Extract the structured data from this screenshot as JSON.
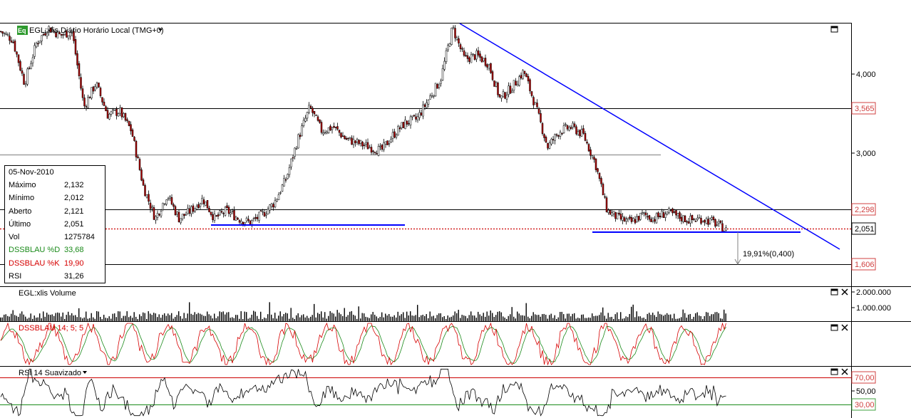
{
  "main_panel": {
    "logo": "Eq",
    "title": "EGL:xlis Diário Horário Local (TMG+0)",
    "menu_arrow": "▾",
    "annotation": "19,91%(0,400)",
    "colors": {
      "up": "#ffffff",
      "down": "#b00000",
      "trendline": "#0000ff",
      "last_line": "#cc0000"
    }
  },
  "info_box": {
    "date": "05-Nov-2010",
    "rows": [
      {
        "label": "Máximo",
        "value": "2,132",
        "color": "#000000"
      },
      {
        "label": "Mínimo",
        "value": "2,012",
        "color": "#000000"
      },
      {
        "label": "Aberto",
        "value": "2,121",
        "color": "#000000"
      },
      {
        "label": "Último",
        "value": "2,051",
        "color": "#000000"
      },
      {
        "label": "Vol",
        "value": "1275784",
        "color": "#000000"
      },
      {
        "label": "DSSBLAU %D",
        "value": "33,68",
        "color": "#1a8a1a"
      },
      {
        "label": "DSSBLAU %K",
        "value": "19,90",
        "color": "#d60000"
      },
      {
        "label": "RSI",
        "value": "31,26",
        "color": "#000000"
      }
    ]
  },
  "volume_panel": {
    "title": "EGL:xlis Volume",
    "ticks": [
      "2.000.000",
      "1.000.000"
    ]
  },
  "dss_panel": {
    "title": "DSSBLAU 14; 5; 5"
  },
  "rsi_panel": {
    "title": "RSI 14 Suavizado",
    "ticks": [
      "70,00",
      "50,00",
      "30,00"
    ]
  },
  "chart_data": {
    "type": "candlestick",
    "title": "EGL:xlis Diário Horário Local (TMG+0)",
    "y_ticks": [
      "4,000",
      "3,000"
    ],
    "horizontal_levels": [
      {
        "value": "3,565",
        "color": "#000000"
      },
      {
        "value": "2,298",
        "color": "#000000"
      },
      {
        "value": "1,606",
        "color": "#000000"
      }
    ],
    "last_price": "2,051",
    "ylim": [
      1.35,
      4.65
    ],
    "price_path": [
      4.55,
      4.45,
      3.9,
      4.4,
      4.6,
      4.5,
      4.55,
      3.6,
      3.9,
      3.5,
      3.55,
      3.3,
      2.6,
      2.2,
      2.5,
      2.2,
      2.3,
      2.45,
      2.2,
      2.3,
      2.2,
      2.15,
      2.25,
      2.4,
      2.7,
      3.2,
      3.6,
      3.3,
      3.35,
      3.2,
      3.15,
      3.1,
      3.05,
      3.25,
      3.4,
      3.45,
      3.7,
      3.95,
      4.6,
      4.2,
      4.25,
      4.15,
      3.7,
      3.85,
      4.05,
      3.6,
      3.1,
      3.3,
      3.35,
      3.25,
      2.9,
      2.3,
      2.2,
      2.15,
      2.25,
      2.2,
      2.28,
      2.22,
      2.18,
      2.2,
      2.15,
      2.05
    ],
    "volume": {
      "ylim": [
        0,
        2500000
      ]
    },
    "dss": {
      "series": [
        {
          "name": "%D",
          "color": "#1a8a1a"
        },
        {
          "name": "%K",
          "color": "#d60000"
        }
      ],
      "ylim": [
        0,
        100
      ]
    },
    "rsi": {
      "levels": [
        70,
        50,
        30
      ],
      "ylim": [
        20,
        80
      ]
    }
  }
}
